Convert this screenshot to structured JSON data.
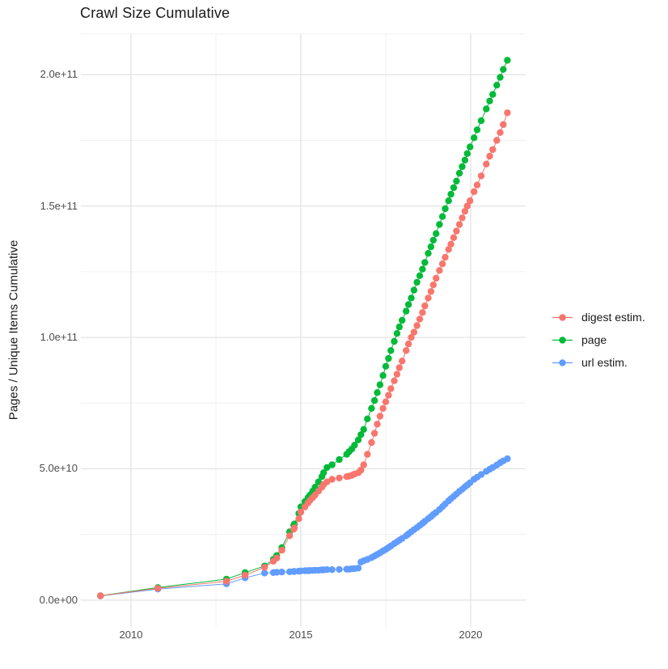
{
  "title": "Crawl Size Cumulative",
  "chart_data": {
    "type": "scatter",
    "title": "Crawl Size Cumulative",
    "xlabel": "",
    "ylabel": "Pages / Unique Items Cumulative",
    "legend_position": "right",
    "grid": true,
    "background": "#ffffff",
    "major_grid_color": "#e3e3e3",
    "minor_grid_color": "#f0f0f0",
    "x_ticks": [
      2010,
      2015,
      2020
    ],
    "x_tick_labels": [
      "2010",
      "2015",
      "2020"
    ],
    "x_minor": [
      2012.5,
      2017.5
    ],
    "xlim": [
      2008.524,
      2021.619
    ],
    "y_ticks": [
      0,
      50000000000,
      100000000000,
      150000000000,
      200000000000
    ],
    "y_tick_labels": [
      "0.0e+00",
      "5.0e+10",
      "1.0e+11",
      "1.5e+11",
      "2.0e+11"
    ],
    "y_minor": [
      25000000000,
      75000000000,
      125000000000,
      175000000000
    ],
    "ylim": [
      -10200000000,
      215500000000
    ],
    "values_scale": 10000000000,
    "x": [
      2009.1,
      2010.79,
      2012.81,
      2013.36,
      2013.93,
      2014.19,
      2014.29,
      2014.44,
      2014.67,
      2014.79,
      2014.81,
      2014.94,
      2015.0,
      2015.12,
      2015.21,
      2015.27,
      2015.35,
      2015.42,
      2015.52,
      2015.62,
      2015.67,
      2015.77,
      2015.92,
      2016.13,
      2016.35,
      2016.42,
      2016.5,
      2016.58,
      2016.69,
      2016.77,
      2016.85,
      2016.96,
      2017.08,
      2017.17,
      2017.25,
      2017.33,
      2017.42,
      2017.5,
      2017.58,
      2017.65,
      2017.75,
      2017.83,
      2017.9,
      2017.98,
      2018.1,
      2018.17,
      2018.25,
      2018.33,
      2018.42,
      2018.5,
      2018.58,
      2018.65,
      2018.75,
      2018.83,
      2018.9,
      2018.98,
      2019.08,
      2019.17,
      2019.25,
      2019.35,
      2019.42,
      2019.5,
      2019.58,
      2019.67,
      2019.75,
      2019.83,
      2019.9,
      2019.98,
      2020.1,
      2020.19,
      2020.31,
      2020.46,
      2020.56,
      2020.65,
      2020.77,
      2020.87,
      2020.96,
      2021.08
    ],
    "series": [
      {
        "name": "digest estim.",
        "color": "#F8766D",
        "values": [
          0.165,
          0.45,
          0.72,
          0.95,
          1.25,
          1.48,
          1.6,
          1.9,
          2.45,
          2.7,
          2.75,
          3.1,
          3.35,
          3.55,
          3.7,
          3.8,
          3.9,
          4.0,
          4.15,
          4.3,
          4.4,
          4.5,
          4.6,
          4.65,
          4.7,
          4.72,
          4.75,
          4.8,
          4.85,
          4.95,
          5.15,
          5.55,
          6.0,
          6.35,
          6.7,
          7.0,
          7.3,
          7.55,
          7.8,
          8.05,
          8.35,
          8.6,
          8.85,
          9.1,
          9.5,
          9.75,
          10.0,
          10.2,
          10.45,
          10.7,
          10.95,
          11.2,
          11.5,
          11.75,
          12.0,
          12.25,
          12.55,
          12.8,
          13.05,
          13.35,
          13.55,
          13.8,
          14.05,
          14.3,
          14.55,
          14.8,
          15.0,
          15.2,
          15.55,
          15.8,
          16.15,
          16.6,
          16.9,
          17.15,
          17.5,
          17.8,
          18.1,
          18.55
        ]
      },
      {
        "name": "page",
        "color": "#00BA38",
        "values": [
          0.17,
          0.48,
          0.8,
          1.05,
          1.3,
          1.55,
          1.7,
          2.0,
          2.6,
          2.85,
          2.9,
          3.3,
          3.55,
          3.75,
          3.9,
          4.0,
          4.15,
          4.3,
          4.5,
          4.7,
          4.85,
          5.05,
          5.15,
          5.35,
          5.55,
          5.65,
          5.75,
          5.9,
          6.1,
          6.3,
          6.5,
          6.9,
          7.3,
          7.6,
          7.9,
          8.2,
          8.55,
          8.9,
          9.2,
          9.5,
          9.85,
          10.15,
          10.4,
          10.65,
          11.0,
          11.25,
          11.5,
          11.8,
          12.1,
          12.35,
          12.6,
          12.85,
          13.2,
          13.45,
          13.7,
          13.95,
          14.3,
          14.6,
          14.9,
          15.2,
          15.45,
          15.7,
          15.95,
          16.25,
          16.5,
          16.75,
          17.0,
          17.25,
          17.6,
          17.9,
          18.25,
          18.7,
          19.0,
          19.25,
          19.6,
          19.9,
          20.2,
          20.55
        ]
      },
      {
        "name": "url estim.",
        "color": "#619CFF",
        "values": [
          0.16,
          0.42,
          0.62,
          0.85,
          1.03,
          1.05,
          1.06,
          1.07,
          1.08,
          1.09,
          1.09,
          1.1,
          1.11,
          1.12,
          1.12,
          1.13,
          1.13,
          1.14,
          1.14,
          1.15,
          1.15,
          1.16,
          1.16,
          1.17,
          1.18,
          1.18,
          1.19,
          1.2,
          1.22,
          1.45,
          1.5,
          1.55,
          1.62,
          1.68,
          1.74,
          1.8,
          1.87,
          1.93,
          2.0,
          2.06,
          2.15,
          2.22,
          2.28,
          2.35,
          2.45,
          2.52,
          2.6,
          2.68,
          2.76,
          2.84,
          2.92,
          3.0,
          3.1,
          3.18,
          3.26,
          3.34,
          3.45,
          3.56,
          3.66,
          3.78,
          3.86,
          3.95,
          4.04,
          4.14,
          4.22,
          4.31,
          4.38,
          4.47,
          4.6,
          4.68,
          4.78,
          4.9,
          4.98,
          5.05,
          5.14,
          5.23,
          5.3,
          5.38
        ]
      }
    ]
  }
}
